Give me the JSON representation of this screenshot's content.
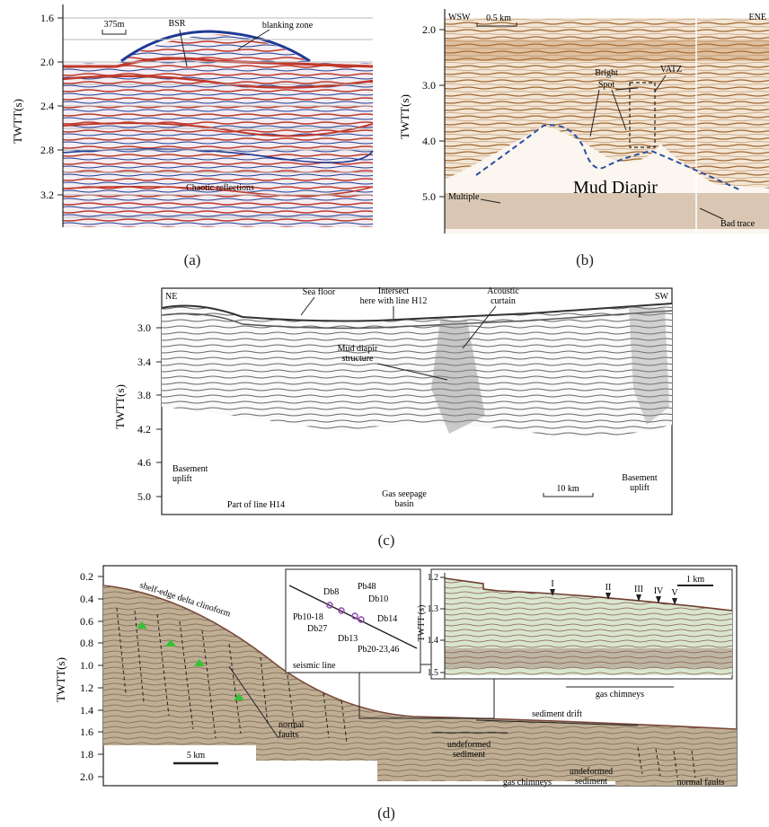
{
  "figure": {
    "panels": [
      {
        "caption": "(a)",
        "y_axis_label": "TWTT(s)",
        "y_ticks": [
          "1.6",
          "2.0",
          "2.4",
          "2.8",
          "3.2"
        ],
        "annotations": {
          "scale": "375m",
          "bsr": "BSR",
          "blanking": "blanking zone",
          "chaotic": "Chaotic reflections"
        }
      },
      {
        "caption": "(b)",
        "y_axis_label": "TWTT(s)",
        "y_ticks": [
          "2.0",
          "3.0",
          "4.0",
          "5.0"
        ],
        "annotations": {
          "left_dir": "WSW",
          "right_dir": "ENE",
          "scale": "0.5 km",
          "bright": "Bright",
          "spot": "Spot",
          "vatz": "VATZ",
          "mud_diapir": "Mud Diapir",
          "multiple": "Multiple",
          "bad_trace": "Bad trace"
        }
      },
      {
        "caption": "(c)",
        "y_axis_label": "TWTT(s)",
        "y_ticks": [
          "3.0",
          "3.4",
          "3.8",
          "4.2",
          "4.6",
          "5.0"
        ],
        "annotations": {
          "left_dir": "NE",
          "right_dir": "SW",
          "sea_floor": "Sea floor",
          "intersect_1": "Intersect",
          "intersect_2": "here with line H12",
          "acoustic_1": "Acoustic",
          "acoustic_2": "curtain",
          "mud_1": "Mud diapir",
          "mud_2": "structure",
          "basement_left_1": "Basement",
          "basement_left_2": "uplift",
          "line": "Part of line H14",
          "gas_1": "Gas seepage",
          "gas_2": "basin",
          "scale": "10 km",
          "basement_right_1": "Basement",
          "basement_right_2": "uplift"
        }
      },
      {
        "caption": "(d)",
        "y_axis_label": "TWTT(s)",
        "y_ticks": [
          "0.2",
          "0.4",
          "0.6",
          "0.8",
          "1.0",
          "1.2",
          "1.4",
          "1.6",
          "1.8",
          "2.0"
        ],
        "annotations": {
          "clinoform": "shelf-edge delta clinoform",
          "normal_1": "normal",
          "normal_2": "faults",
          "scale": "5 km",
          "undeformed_1_a": "undeformed",
          "undeformed_1_b": "sediment",
          "undeformed_2_a": "undeformed",
          "undeformed_2_b": "sediment",
          "gas_chimneys_low": "gas chimneys",
          "normal_faults_right": "normal faults",
          "sediment_drift": "sediment drift",
          "gas_chimneys_inset": "gas chimneys",
          "seismic_line": "seismic line",
          "map_labels": [
            "Db8",
            "Pb48",
            "Db10",
            "Pb10-18",
            "Db14",
            "Db27",
            "Db13",
            "Pb20-23,46"
          ],
          "inset_y_label": "TWTT (s)",
          "inset_ticks": [
            "1.2",
            "1.3",
            "1.4",
            "1.5"
          ],
          "inset_scale": "1 km",
          "roman": [
            "I",
            "II",
            "III",
            "IV",
            "V"
          ]
        }
      }
    ]
  },
  "colors": {
    "a_red": "#c0392b",
    "a_blue": "#1f3a93",
    "b_brown": "#a0662e",
    "c_gray": "#555555",
    "d_earth": "#a79478",
    "d_green": "#35c235",
    "d_purple": "#8e44ad",
    "dash_blue": "#2c4fa3"
  }
}
